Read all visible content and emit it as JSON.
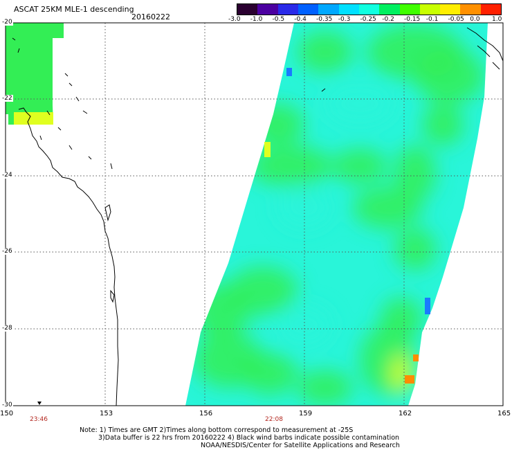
{
  "header": {
    "title": "ASCAT 25KM MLE-1 descending",
    "date": "20160222"
  },
  "colorbar": {
    "labels": [
      "-3.0",
      "-1.0",
      "-0.5",
      "-0.4",
      "-0.35",
      "-0.3",
      "-0.25",
      "-0.2",
      "-0.15",
      "-0.1",
      "-0.05",
      "0.0",
      "1.0"
    ],
    "colors": [
      "#2a0030",
      "#4b00a0",
      "#2a2ae8",
      "#0060ff",
      "#00a8ff",
      "#00e0ff",
      "#10ffe0",
      "#00f060",
      "#40ff00",
      "#c8ff00",
      "#ffee00",
      "#ff9000",
      "#ff2000"
    ]
  },
  "map": {
    "lon_labels": [
      "150",
      "153",
      "156",
      "159",
      "162",
      "165"
    ],
    "lat_labels": [
      "-20",
      "-22",
      "-24",
      "-26",
      "-28",
      "-30"
    ],
    "pass_times": [
      "23:46",
      "22:08"
    ],
    "colors": {
      "swath_cyan": "#29f5d9",
      "swath_green": "#33ee55",
      "swath_yellow": "#e0ff20",
      "swath_orange": "#ff8c00",
      "swath_blue": "#1a7aff",
      "grid": "#555555",
      "coast": "#000000",
      "time_text": "#b3261e"
    }
  },
  "notes": {
    "line1": "Note: 1) Times are GMT 2)Times along bottom correspond to measurement at -25S",
    "line2": "3)Data buffer is 22 hrs from 20160222 4) Black wind barbs indicate possible contamination",
    "line3": "NOAA/NESDIS/Center for Satellite Applications and Research"
  }
}
